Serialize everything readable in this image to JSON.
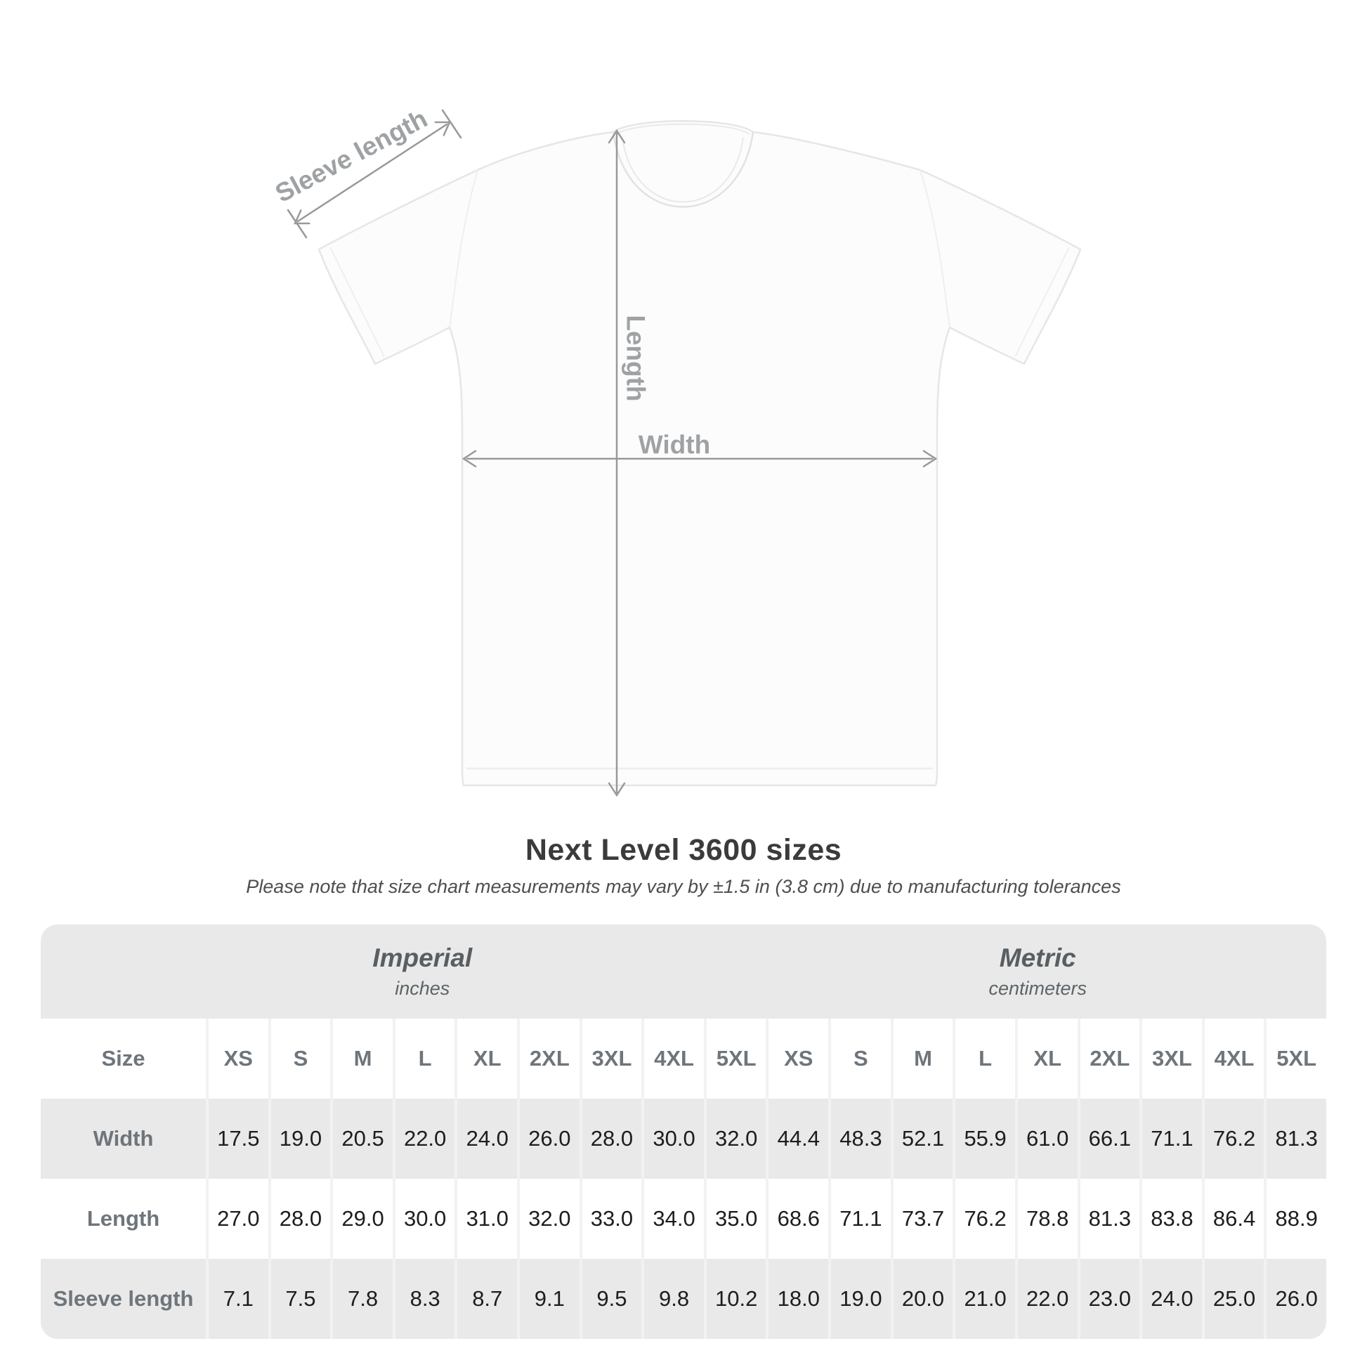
{
  "diagram": {
    "labels": {
      "sleeve": "Sleeve length",
      "length": "Length",
      "width": "Width"
    }
  },
  "header": {
    "title": "Next Level 3600 sizes",
    "subtitle": "Please note that size chart measurements may vary by ±1.5 in (3.8 cm) due to manufacturing tolerances"
  },
  "size_chart": {
    "groups": [
      {
        "name": "Imperial",
        "unit": "inches"
      },
      {
        "name": "Metric",
        "unit": "centimeters"
      }
    ],
    "corner_label": "Size",
    "columns": [
      "XS",
      "S",
      "M",
      "L",
      "XL",
      "2XL",
      "3XL",
      "4XL",
      "5XL",
      "XS",
      "S",
      "M",
      "L",
      "XL",
      "2XL",
      "3XL",
      "4XL",
      "5XL"
    ],
    "rows": [
      {
        "label": "Width",
        "values": [
          "17.5",
          "19.0",
          "20.5",
          "22.0",
          "24.0",
          "26.0",
          "28.0",
          "30.0",
          "32.0",
          "44.4",
          "48.3",
          "52.1",
          "55.9",
          "61.0",
          "66.1",
          "71.1",
          "76.2",
          "81.3"
        ]
      },
      {
        "label": "Length",
        "values": [
          "27.0",
          "28.0",
          "29.0",
          "30.0",
          "31.0",
          "32.0",
          "33.0",
          "34.0",
          "35.0",
          "68.6",
          "71.1",
          "73.7",
          "76.2",
          "78.8",
          "81.3",
          "83.8",
          "86.4",
          "88.9"
        ]
      },
      {
        "label": "Sleeve length",
        "values": [
          "7.1",
          "7.5",
          "7.8",
          "8.3",
          "8.7",
          "9.1",
          "9.5",
          "9.8",
          "10.2",
          "18.0",
          "19.0",
          "20.0",
          "21.0",
          "22.0",
          "23.0",
          "24.0",
          "25.0",
          "26.0"
        ]
      }
    ]
  },
  "colors": {
    "table_bg": "#e9e9e9",
    "row_stripe": "#ffffff",
    "separator": "#f2f2f2",
    "label_text": "#6e757b",
    "value_text": "#1d1d1d",
    "annotation": "#9fa2a4",
    "title_text": "#3b3b3b"
  }
}
